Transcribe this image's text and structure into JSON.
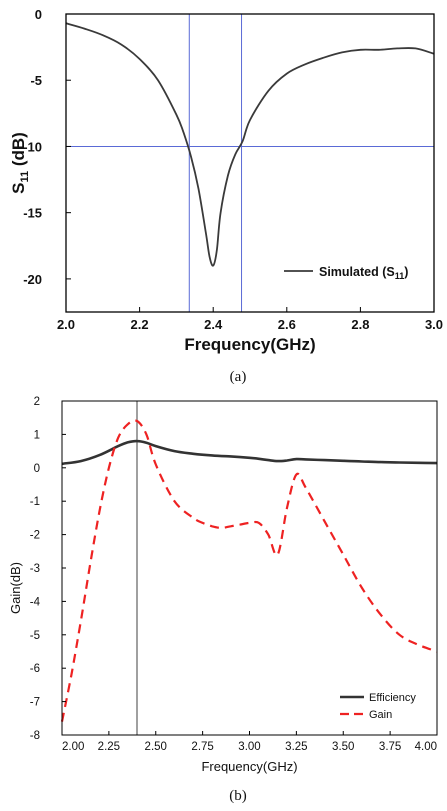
{
  "captions": {
    "a": "(a)",
    "b": "(b)"
  },
  "chart_data": [
    {
      "type": "line",
      "xlabel": "Frequency(GHz)",
      "ylabel": "S",
      "ylabel_sub": "11",
      "ylabel_unit": " (dB)",
      "xlim": [
        2.0,
        3.0
      ],
      "ylim": [
        -22.5,
        0
      ],
      "x_ticks": [
        2.0,
        2.2,
        2.4,
        2.6,
        2.8,
        3.0
      ],
      "x_tick_labels": [
        "2.0",
        "2.2",
        "2.4",
        "2.6",
        "2.8",
        "3.0"
      ],
      "y_ticks": [
        0,
        -5,
        -10,
        -15,
        -20
      ],
      "y_tick_labels": [
        "0",
        "-5",
        "-10",
        "-15",
        "-20"
      ],
      "grid": false,
      "legend_position": "bottom-right",
      "colors": {
        "series": "#3a3a3a",
        "marker_lines": "#5a6ad6"
      },
      "reference_lines": {
        "vertical_x": [
          2.335,
          2.477
        ],
        "horizontal_y": [
          -10
        ]
      },
      "series": [
        {
          "name": "Simulated (S",
          "name_sub": "11",
          "name_end": ")",
          "x": [
            2.0,
            2.05,
            2.1,
            2.15,
            2.2,
            2.25,
            2.3,
            2.32,
            2.34,
            2.36,
            2.38,
            2.39,
            2.4,
            2.41,
            2.42,
            2.44,
            2.46,
            2.48,
            2.5,
            2.55,
            2.6,
            2.65,
            2.7,
            2.75,
            2.8,
            2.85,
            2.9,
            2.95,
            3.0
          ],
          "y": [
            -0.7,
            -1.1,
            -1.6,
            -2.3,
            -3.4,
            -5.0,
            -7.6,
            -9.0,
            -10.8,
            -13.2,
            -16.5,
            -18.3,
            -19.0,
            -17.8,
            -15.0,
            -12.2,
            -10.6,
            -9.6,
            -8.0,
            -5.8,
            -4.5,
            -3.8,
            -3.3,
            -2.9,
            -2.7,
            -2.7,
            -2.6,
            -2.6,
            -3.0
          ]
        }
      ]
    },
    {
      "type": "line",
      "xlabel": "Frequency(GHz)",
      "ylabel": "Gain(dB)",
      "xlim": [
        2.0,
        4.0
      ],
      "ylim": [
        -8,
        2
      ],
      "x_ticks": [
        2.0,
        2.25,
        2.5,
        2.75,
        3.0,
        3.25,
        3.5,
        3.75,
        4.0
      ],
      "x_tick_labels": [
        "2.00",
        "2.25",
        "2.50",
        "2.75",
        "3.00",
        "3.25",
        "3.50",
        "3.75",
        "4.00"
      ],
      "y_ticks": [
        2,
        1,
        0,
        -1,
        -2,
        -3,
        -4,
        -5,
        -6,
        -7,
        -8
      ],
      "y_tick_labels": [
        "2",
        "1",
        "0",
        "-1",
        "-2",
        "-3",
        "-4",
        "-5",
        "-6",
        "-7",
        "-8"
      ],
      "grid": false,
      "legend_position": "bottom-right",
      "colors": {
        "efficiency": "#333333",
        "gain": "#ee2222",
        "marker_line": "#888888"
      },
      "reference_lines": {
        "vertical_x": [
          2.4
        ]
      },
      "series": [
        {
          "name": "Efficiency",
          "x": [
            2.0,
            2.1,
            2.2,
            2.3,
            2.35,
            2.4,
            2.45,
            2.5,
            2.6,
            2.7,
            2.8,
            2.9,
            3.0,
            3.05,
            3.1,
            3.15,
            3.2,
            3.25,
            3.3,
            3.4,
            3.5,
            3.6,
            3.7,
            3.8,
            3.9,
            4.0
          ],
          "y": [
            0.12,
            0.2,
            0.38,
            0.65,
            0.76,
            0.8,
            0.75,
            0.65,
            0.5,
            0.42,
            0.37,
            0.34,
            0.3,
            0.27,
            0.23,
            0.2,
            0.22,
            0.26,
            0.25,
            0.23,
            0.21,
            0.19,
            0.17,
            0.16,
            0.15,
            0.14
          ]
        },
        {
          "name": "Gain",
          "x": [
            2.0,
            2.05,
            2.1,
            2.15,
            2.2,
            2.25,
            2.3,
            2.35,
            2.4,
            2.45,
            2.5,
            2.6,
            2.7,
            2.75,
            2.8,
            2.85,
            2.9,
            2.95,
            3.0,
            3.05,
            3.1,
            3.15,
            3.2,
            3.25,
            3.3,
            3.4,
            3.5,
            3.6,
            3.7,
            3.8,
            3.9,
            4.0
          ],
          "y": [
            -7.6,
            -6.2,
            -4.6,
            -2.9,
            -1.3,
            0.0,
            0.9,
            1.3,
            1.4,
            1.0,
            0.1,
            -1.0,
            -1.5,
            -1.65,
            -1.75,
            -1.8,
            -1.75,
            -1.7,
            -1.65,
            -1.65,
            -2.0,
            -2.6,
            -1.2,
            -0.2,
            -0.6,
            -1.6,
            -2.6,
            -3.6,
            -4.4,
            -5.0,
            -5.3,
            -5.5
          ]
        }
      ]
    }
  ]
}
